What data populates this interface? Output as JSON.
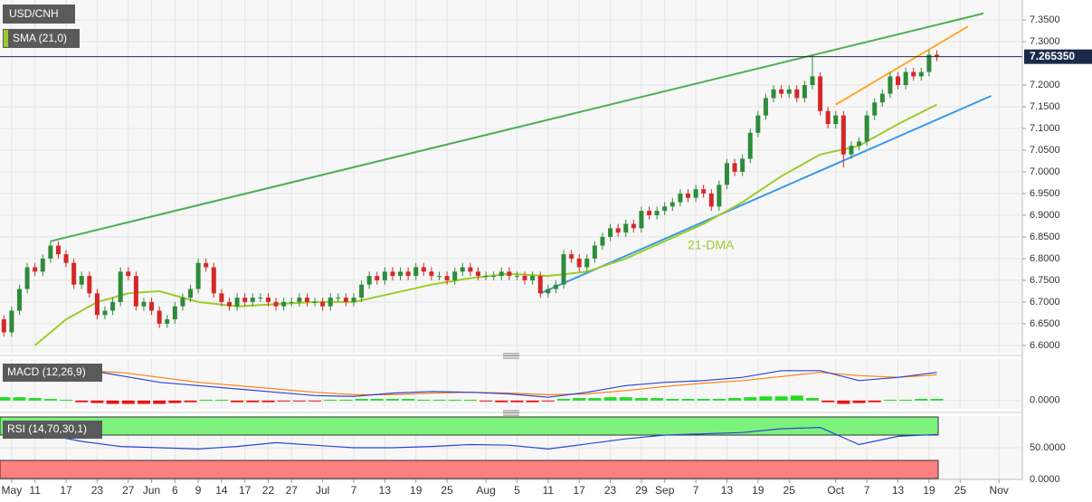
{
  "chart_data": {
    "type": "candlestick",
    "title": "USD/CNH",
    "up_color": "#2e8b3a",
    "down_color": "#d62828",
    "grid": true,
    "open": [
      6.66,
      6.63,
      6.68,
      6.73,
      6.78,
      6.77,
      6.8,
      6.83,
      6.81,
      6.79,
      6.74,
      6.76,
      6.72,
      6.67,
      6.68,
      6.7,
      6.77,
      6.76,
      6.69,
      6.7,
      6.68,
      6.65,
      6.66,
      6.69,
      6.71,
      6.73,
      6.79,
      6.78,
      6.72,
      6.7,
      6.69,
      6.71,
      6.7,
      6.71,
      6.71,
      6.7,
      6.69,
      6.7,
      6.7,
      6.71,
      6.7,
      6.7,
      6.69,
      6.71,
      6.71,
      6.7,
      6.71,
      6.74,
      6.76,
      6.75,
      6.77,
      6.76,
      6.77,
      6.76,
      6.78,
      6.77,
      6.76,
      6.76,
      6.75,
      6.77,
      6.78,
      6.77,
      6.76,
      6.76,
      6.76,
      6.77,
      6.76,
      6.76,
      6.75,
      6.76,
      6.72,
      6.73,
      6.74,
      6.81,
      6.8,
      6.78,
      6.8,
      6.83,
      6.85,
      6.87,
      6.86,
      6.88,
      6.87,
      6.91,
      6.9,
      6.91,
      6.92,
      6.93,
      6.95,
      6.94,
      6.96,
      6.95,
      6.92,
      6.97,
      7.02,
      7.0,
      7.03,
      7.09,
      7.13,
      7.17,
      7.19,
      7.18,
      7.19,
      7.17,
      7.2,
      7.22,
      7.14,
      7.11,
      7.13,
      7.04,
      7.06,
      7.07,
      7.13,
      7.16,
      7.18,
      7.22,
      7.2,
      7.23,
      7.22,
      7.23,
      7.27
    ],
    "high": [
      6.67,
      6.69,
      6.74,
      6.79,
      6.79,
      6.81,
      6.84,
      6.84,
      6.82,
      6.8,
      6.77,
      6.77,
      6.73,
      6.69,
      6.71,
      6.78,
      6.78,
      6.77,
      6.71,
      6.71,
      6.69,
      6.67,
      6.7,
      6.72,
      6.74,
      6.8,
      6.8,
      6.79,
      6.73,
      6.71,
      6.72,
      6.72,
      6.72,
      6.72,
      6.72,
      6.71,
      6.71,
      6.71,
      6.72,
      6.72,
      6.71,
      6.71,
      6.72,
      6.72,
      6.72,
      6.72,
      6.75,
      6.77,
      6.77,
      6.78,
      6.78,
      6.78,
      6.78,
      6.79,
      6.79,
      6.78,
      6.77,
      6.77,
      6.78,
      6.79,
      6.79,
      6.78,
      6.77,
      6.77,
      6.78,
      6.78,
      6.77,
      6.77,
      6.77,
      6.77,
      6.74,
      6.75,
      6.82,
      6.82,
      6.81,
      6.81,
      6.84,
      6.86,
      6.88,
      6.88,
      6.89,
      6.89,
      6.92,
      6.92,
      6.92,
      6.93,
      6.94,
      6.96,
      6.96,
      6.97,
      6.97,
      6.96,
      6.98,
      7.03,
      7.03,
      7.04,
      7.1,
      7.14,
      7.18,
      7.2,
      7.2,
      7.2,
      7.2,
      7.21,
      7.27,
      7.23,
      7.15,
      7.14,
      7.14,
      7.07,
      7.08,
      7.14,
      7.17,
      7.19,
      7.23,
      7.23,
      7.24,
      7.24,
      7.24,
      7.28,
      7.28
    ],
    "low": [
      6.62,
      6.62,
      6.67,
      6.72,
      6.76,
      6.76,
      6.79,
      6.8,
      6.78,
      6.73,
      6.73,
      6.71,
      6.66,
      6.66,
      6.67,
      6.69,
      6.75,
      6.68,
      6.68,
      6.67,
      6.64,
      6.64,
      6.65,
      6.68,
      6.7,
      6.72,
      6.77,
      6.71,
      6.69,
      6.68,
      6.68,
      6.69,
      6.69,
      6.7,
      6.69,
      6.68,
      6.68,
      6.69,
      6.69,
      6.69,
      6.69,
      6.68,
      6.68,
      6.7,
      6.69,
      6.69,
      6.7,
      6.73,
      6.74,
      6.74,
      6.75,
      6.75,
      6.75,
      6.75,
      6.76,
      6.75,
      6.75,
      6.74,
      6.74,
      6.76,
      6.76,
      6.75,
      6.75,
      6.75,
      6.75,
      6.75,
      6.75,
      6.74,
      6.74,
      6.71,
      6.71,
      6.72,
      6.73,
      6.79,
      6.77,
      6.77,
      6.79,
      6.82,
      6.84,
      6.85,
      6.85,
      6.86,
      6.86,
      6.89,
      6.89,
      6.9,
      6.91,
      6.92,
      6.93,
      6.93,
      6.94,
      6.91,
      6.91,
      6.96,
      6.99,
      6.99,
      7.02,
      7.08,
      7.12,
      7.16,
      7.17,
      7.17,
      7.16,
      7.16,
      7.19,
      7.13,
      7.1,
      7.1,
      7.01,
      7.03,
      7.05,
      7.06,
      7.12,
      7.15,
      7.17,
      7.19,
      7.19,
      7.21,
      7.21,
      7.22,
      7.255
    ],
    "close": [
      6.63,
      6.68,
      6.73,
      6.78,
      6.77,
      6.8,
      6.83,
      6.81,
      6.79,
      6.74,
      6.76,
      6.72,
      6.67,
      6.68,
      6.7,
      6.77,
      6.76,
      6.69,
      6.7,
      6.68,
      6.65,
      6.66,
      6.69,
      6.71,
      6.73,
      6.79,
      6.78,
      6.72,
      6.7,
      6.69,
      6.71,
      6.7,
      6.71,
      6.71,
      6.7,
      6.69,
      6.7,
      6.7,
      6.71,
      6.7,
      6.7,
      6.69,
      6.71,
      6.71,
      6.7,
      6.71,
      6.74,
      6.76,
      6.75,
      6.77,
      6.76,
      6.77,
      6.76,
      6.78,
      6.77,
      6.76,
      6.76,
      6.75,
      6.77,
      6.78,
      6.77,
      6.76,
      6.76,
      6.76,
      6.77,
      6.76,
      6.76,
      6.75,
      6.76,
      6.72,
      6.73,
      6.74,
      6.81,
      6.8,
      6.78,
      6.8,
      6.83,
      6.85,
      6.87,
      6.86,
      6.88,
      6.87,
      6.91,
      6.9,
      6.91,
      6.92,
      6.93,
      6.95,
      6.94,
      6.96,
      6.95,
      6.92,
      6.97,
      7.02,
      7.0,
      7.03,
      7.09,
      7.13,
      7.17,
      7.19,
      7.18,
      7.19,
      7.17,
      7.2,
      7.22,
      7.14,
      7.11,
      7.13,
      7.04,
      7.06,
      7.07,
      7.13,
      7.16,
      7.18,
      7.22,
      7.2,
      7.23,
      7.22,
      7.23,
      7.27,
      7.265
    ],
    "xlim": [
      -0.5,
      131
    ],
    "xticks": [
      {
        "value": 1,
        "label": "May"
      },
      {
        "value": 4,
        "label": "11"
      },
      {
        "value": 8,
        "label": "17"
      },
      {
        "value": 12,
        "label": "23"
      },
      {
        "value": 16,
        "label": "27"
      },
      {
        "value": 19,
        "label": "Jun"
      },
      {
        "value": 22,
        "label": "6"
      },
      {
        "value": 25,
        "label": "9"
      },
      {
        "value": 28,
        "label": "14"
      },
      {
        "value": 31,
        "label": "17"
      },
      {
        "value": 34,
        "label": "22"
      },
      {
        "value": 37,
        "label": "27"
      },
      {
        "value": 41,
        "label": "Jul"
      },
      {
        "value": 45,
        "label": "7"
      },
      {
        "value": 49,
        "label": "13"
      },
      {
        "value": 53,
        "label": "19"
      },
      {
        "value": 57,
        "label": "25"
      },
      {
        "value": 62,
        "label": "Aug"
      },
      {
        "value": 66,
        "label": "5"
      },
      {
        "value": 70,
        "label": "11"
      },
      {
        "value": 74,
        "label": "17"
      },
      {
        "value": 78,
        "label": "23"
      },
      {
        "value": 82,
        "label": "29"
      },
      {
        "value": 85,
        "label": "Sep"
      },
      {
        "value": 89,
        "label": "7"
      },
      {
        "value": 93,
        "label": "13"
      },
      {
        "value": 97,
        "label": "19"
      },
      {
        "value": 101,
        "label": "25"
      },
      {
        "value": 107,
        "label": "Oct"
      },
      {
        "value": 111,
        "label": "7"
      },
      {
        "value": 115,
        "label": "13"
      },
      {
        "value": 119,
        "label": "19"
      },
      {
        "value": 123,
        "label": "25"
      },
      {
        "value": 128,
        "label": "Nov"
      }
    ],
    "ylim": [
      6.583,
      7.396
    ],
    "yticks": [
      {
        "value": 7.35,
        "label": "7.3500"
      },
      {
        "value": 7.3,
        "label": "7.3000"
      },
      {
        "value": 7.2,
        "label": "7.2000"
      },
      {
        "value": 7.15,
        "label": "7.1500"
      },
      {
        "value": 7.1,
        "label": "7.1000"
      },
      {
        "value": 7.05,
        "label": "7.0500"
      },
      {
        "value": 7.0,
        "label": "7.0000"
      },
      {
        "value": 6.95,
        "label": "6.9500"
      },
      {
        "value": 6.9,
        "label": "6.9000"
      },
      {
        "value": 6.85,
        "label": "6.8500"
      },
      {
        "value": 6.8,
        "label": "6.8000"
      },
      {
        "value": 6.75,
        "label": "6.7500"
      },
      {
        "value": 6.7,
        "label": "6.7000"
      },
      {
        "value": 6.65,
        "label": "6.6500"
      },
      {
        "value": 6.6,
        "label": "6.6000"
      }
    ],
    "last_price": {
      "value": 7.26535,
      "label": "7.265350",
      "color": "#1c2a4a"
    },
    "sma": {
      "name": "SMA (21,0)",
      "label": "21-DMA",
      "color": "#9ccc2a",
      "x": [
        4,
        8,
        12,
        16,
        20,
        25,
        30,
        35,
        40,
        45,
        50,
        55,
        60,
        65,
        70,
        75,
        80,
        85,
        90,
        95,
        100,
        105,
        110,
        115,
        120
      ],
      "values": [
        6.6,
        6.66,
        6.7,
        6.72,
        6.725,
        6.7,
        6.69,
        6.695,
        6.7,
        6.7,
        6.72,
        6.74,
        6.755,
        6.765,
        6.76,
        6.77,
        6.8,
        6.84,
        6.88,
        6.93,
        6.99,
        7.04,
        7.06,
        7.11,
        7.155
      ]
    },
    "lines": [
      {
        "color": "#4caf50",
        "x": [
          6,
          126
        ],
        "y": [
          6.84,
          7.365
        ]
      },
      {
        "color": "#ffa726",
        "x": [
          107,
          124
        ],
        "y": [
          7.155,
          7.335
        ]
      },
      {
        "color": "#3a9ae6",
        "x": [
          69,
          127
        ],
        "y": [
          6.72,
          7.175
        ]
      }
    ],
    "macd": {
      "label": "MACD (12,26,9)",
      "macd_color": "#2a44d6",
      "signal_color": "#ff7f0e",
      "ylim": [
        -0.01,
        0.05
      ],
      "yticks": [
        {
          "value": 0,
          "label": "0.0000"
        }
      ],
      "x": [
        0,
        5,
        10,
        15,
        20,
        25,
        30,
        35,
        40,
        45,
        50,
        55,
        60,
        65,
        70,
        75,
        80,
        85,
        90,
        95,
        100,
        105,
        110,
        115,
        120
      ],
      "macd": [
        0.04,
        0.041,
        0.038,
        0.03,
        0.022,
        0.018,
        0.014,
        0.01,
        0.006,
        0.005,
        0.009,
        0.011,
        0.01,
        0.008,
        0.004,
        0.01,
        0.018,
        0.022,
        0.024,
        0.028,
        0.036,
        0.036,
        0.024,
        0.028,
        0.034
      ],
      "signal": [
        0.03,
        0.034,
        0.036,
        0.034,
        0.028,
        0.022,
        0.018,
        0.014,
        0.01,
        0.007,
        0.007,
        0.009,
        0.01,
        0.009,
        0.007,
        0.008,
        0.012,
        0.017,
        0.021,
        0.024,
        0.029,
        0.034,
        0.03,
        0.028,
        0.031
      ],
      "hist_x": [
        0,
        2,
        4,
        6,
        8,
        10,
        12,
        14,
        16,
        18,
        20,
        22,
        24,
        26,
        28,
        30,
        32,
        34,
        36,
        38,
        40,
        42,
        44,
        46,
        48,
        50,
        52,
        54,
        56,
        58,
        60,
        62,
        64,
        66,
        68,
        70,
        72,
        74,
        76,
        78,
        80,
        82,
        84,
        86,
        88,
        90,
        92,
        94,
        96,
        98,
        100,
        102,
        104,
        106,
        108,
        110,
        112,
        114,
        116,
        118,
        120
      ],
      "hist": [
        0.004,
        0.004,
        0.003,
        0.002,
        0.001,
        -0.002,
        -0.003,
        -0.004,
        -0.004,
        -0.004,
        -0.004,
        -0.003,
        -0.002,
        0.001,
        0.001,
        -0.002,
        -0.002,
        -0.002,
        -0.001,
        -0.001,
        -0.001,
        0.001,
        0.001,
        0.002,
        0.002,
        0.002,
        0.002,
        0.001,
        0.001,
        0.001,
        0.001,
        -0.001,
        -0.002,
        -0.002,
        -0.002,
        -0.001,
        0.002,
        0.003,
        0.003,
        0.004,
        0.004,
        0.003,
        0.003,
        0.002,
        0.002,
        0.002,
        0.002,
        0.003,
        0.004,
        0.005,
        0.005,
        0.006,
        0.003,
        -0.002,
        -0.004,
        -0.003,
        -0.002,
        0.001,
        0.001,
        0.002,
        0.002
      ]
    },
    "rsi": {
      "label": "RSI (14,70,30,1)",
      "color": "#2a44d6",
      "overbought": 70,
      "oversold": 30,
      "ylim": [
        0,
        100
      ],
      "yticks": [
        {
          "value": 50,
          "label": "50.0000"
        },
        {
          "value": 0,
          "label": "0.0000"
        }
      ],
      "x": [
        0,
        5,
        10,
        15,
        20,
        25,
        30,
        35,
        40,
        45,
        50,
        55,
        60,
        65,
        70,
        75,
        80,
        85,
        90,
        95,
        100,
        105,
        110,
        115,
        120
      ],
      "values": [
        78,
        72,
        60,
        52,
        50,
        48,
        52,
        58,
        54,
        50,
        50,
        52,
        55,
        54,
        48,
        56,
        64,
        70,
        72,
        74,
        80,
        82,
        55,
        68,
        71
      ]
    }
  }
}
